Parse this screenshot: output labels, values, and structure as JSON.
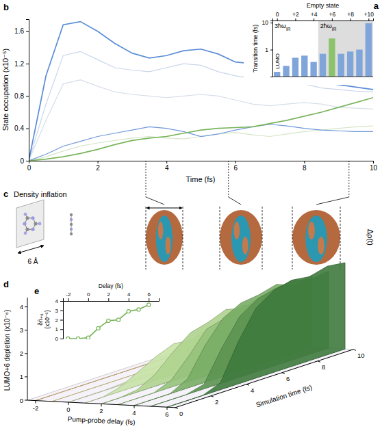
{
  "chart_data": [
    {
      "panel": "a",
      "type": "bar",
      "log": "y",
      "xlabel": "Empty state",
      "ylabel": "Transition time (fs)",
      "x": [
        0,
        1,
        2,
        3,
        4,
        5,
        6,
        7,
        8,
        9,
        10
      ],
      "values": [
        0.15,
        0.25,
        0.5,
        0.6,
        0.35,
        0.7,
        2.6,
        0.7,
        0.85,
        1.0,
        9.5
      ],
      "colors": [
        "#7fa5da",
        "#7fa5da",
        "#7fa5da",
        "#7fa5da",
        "#7fa5da",
        "#7fa5da",
        "#8cc26c",
        "#7fa5da",
        "#7fa5da",
        "#7fa5da",
        "#7fa5da"
      ],
      "xlim": [
        -0.5,
        10.5
      ],
      "xticks": [
        0,
        {
          "value": 2,
          "label": "+2"
        },
        {
          "value": 4,
          "label": "+4"
        },
        {
          "value": 6,
          "label": "+6"
        },
        {
          "value": 8,
          "label": "+8"
        },
        {
          "value": 10,
          "label": "+10"
        }
      ],
      "ylim": [
        0.1,
        12
      ],
      "yticks": [
        1,
        10
      ],
      "annotations": [
        {
          "text": "LUMO",
          "x": 0
        }
      ],
      "regions": [
        {
          "label": "3ħω",
          "label_sub": "IR",
          "from": -0.5,
          "to": 4.5,
          "shaded": false
        },
        {
          "label": "2ħω",
          "label_sub": "IR",
          "from": 4.5,
          "to": 10.5,
          "shaded": true
        }
      ]
    },
    {
      "panel": "b",
      "type": "line",
      "xlabel": "Time (fs)",
      "ylabel": "State occupation (x10⁻⁵)",
      "x": [
        0,
        0.5,
        1,
        1.5,
        2,
        2.5,
        3,
        3.5,
        4,
        4.5,
        5,
        5.5,
        6,
        6.5,
        7,
        7.5,
        8,
        8.5,
        9,
        9.5,
        10
      ],
      "series": [
        {
          "color": "#c9d6ea",
          "values": [
            0,
            0.7,
            1.3,
            1.35,
            1.25,
            1.15,
            1.12,
            1.1,
            1.15,
            1.2,
            1.18,
            1.1,
            1.05,
            1.02,
            1.0,
            0.98,
            0.95,
            0.9,
            0.88,
            0.86,
            0.85
          ]
        },
        {
          "color": "#d6dee9",
          "values": [
            0,
            0.5,
            0.95,
            1.0,
            0.92,
            0.85,
            0.82,
            0.8,
            0.78,
            0.8,
            0.82,
            0.8,
            0.75,
            0.7,
            0.68,
            0.7,
            0.72,
            0.7,
            0.66,
            0.65,
            0.64
          ]
        },
        {
          "color": "#d5e6c8",
          "values": [
            0,
            0.05,
            0.12,
            0.18,
            0.22,
            0.25,
            0.28,
            0.3,
            0.28,
            0.27,
            0.3,
            0.33,
            0.35,
            0.32,
            0.3,
            0.33,
            0.36,
            0.38,
            0.4,
            0.42,
            0.43
          ]
        },
        {
          "color": "#6f98d8",
          "values": [
            0,
            0.08,
            0.18,
            0.24,
            0.3,
            0.34,
            0.38,
            0.42,
            0.4,
            0.36,
            0.3,
            0.33,
            0.38,
            0.42,
            0.45,
            0.43,
            0.4,
            0.38,
            0.37,
            0.36,
            0.36
          ]
        },
        {
          "color": "#5b8dd6",
          "values": [
            0,
            1.05,
            1.68,
            1.72,
            1.6,
            1.45,
            1.33,
            1.27,
            1.3,
            1.36,
            1.38,
            1.32,
            1.22,
            1.2,
            1.17,
            1.08,
            1.01,
            0.97,
            0.94,
            0.91,
            0.88
          ]
        },
        {
          "color": "#7ab55c",
          "values": [
            0,
            0.02,
            0.05,
            0.09,
            0.14,
            0.2,
            0.25,
            0.28,
            0.3,
            0.34,
            0.38,
            0.4,
            0.41,
            0.42,
            0.46,
            0.5,
            0.55,
            0.6,
            0.66,
            0.72,
            0.78
          ]
        }
      ],
      "xlim": [
        0,
        10
      ],
      "xticks": [
        0,
        2,
        4,
        6,
        8,
        10
      ],
      "ylim": [
        0,
        1.75
      ],
      "yticks": [
        0,
        0.4,
        0.8,
        1.2,
        1.6
      ],
      "snapshot_times": [
        3.4,
        5.8,
        9.3
      ]
    },
    {
      "panel": "c",
      "type": "diagram",
      "title": "Density inflation",
      "scale_label": "6 Å",
      "ylabel": "Δρ(t)"
    },
    {
      "panel": "d",
      "type": "waterfall",
      "xlabel": "Pump-probe delay (fs)",
      "ylabel": "LUMO+6 depletion (x10⁻⁶)",
      "zlabel": "Simulation time (fs)",
      "t": [
        0,
        1,
        2,
        3,
        4,
        5,
        6,
        7,
        8,
        9,
        10
      ],
      "series": [
        {
          "delay": -2,
          "color": "#f3c98b",
          "values": [
            0,
            0,
            0,
            0,
            0,
            0,
            0,
            0,
            0,
            0,
            0
          ]
        },
        {
          "delay": -1,
          "color": "#ecdc93",
          "values": [
            0,
            0,
            0,
            0,
            0,
            0,
            0,
            0,
            0,
            0,
            0
          ]
        },
        {
          "delay": 0,
          "color": "#dfeec0",
          "values": [
            0,
            0,
            0,
            0.05,
            0.1,
            0.1,
            0.15,
            0.1,
            0.15,
            0.1,
            0.1
          ]
        },
        {
          "delay": 1,
          "color": "#c8e2a6",
          "values": [
            0,
            0,
            0.2,
            0.6,
            1.0,
            1.3,
            1.2,
            1.5,
            1.4,
            1.3,
            1.4
          ]
        },
        {
          "delay": 2,
          "color": "#afd38f",
          "values": [
            0,
            0,
            0.1,
            0.5,
            1.2,
            1.8,
            2.0,
            2.3,
            2.1,
            2.4,
            2.2
          ]
        },
        {
          "delay": 3,
          "color": "#95c27b",
          "values": [
            0,
            0,
            0,
            0.3,
            1.1,
            2.0,
            2.2,
            2.5,
            2.3,
            2.6,
            2.4
          ]
        },
        {
          "delay": 4,
          "color": "#79ad66",
          "values": [
            0,
            0,
            0,
            0.4,
            1.6,
            2.5,
            2.9,
            3.0,
            3.2,
            2.9,
            3.1
          ]
        },
        {
          "delay": 5,
          "color": "#5c9452",
          "values": [
            0,
            0,
            0,
            0.2,
            1.5,
            2.6,
            3.1,
            3.3,
            3.4,
            3.2,
            3.3
          ]
        },
        {
          "delay": 6,
          "color": "#3f7a3e",
          "values": [
            0,
            0,
            0,
            0.3,
            1.8,
            3.0,
            3.5,
            3.7,
            3.6,
            3.8,
            3.7
          ]
        }
      ],
      "xlim": [
        -2.5,
        6.5
      ],
      "xticks": [
        -2,
        0,
        2,
        4,
        6
      ],
      "ylim": [
        0,
        4.4
      ],
      "yticks": [
        0,
        1,
        2,
        3,
        4
      ],
      "zlim": [
        0,
        10
      ],
      "zticks": [
        0,
        2,
        4,
        6,
        8,
        10
      ]
    },
    {
      "panel": "e",
      "type": "line",
      "marker": "circle",
      "color": "#7ab55c",
      "xlabel": "Delay (fs)",
      "ylabel": "δn̄₊₆ (x10⁻⁶)",
      "x": [
        -2,
        -1,
        0,
        1,
        2,
        3,
        4,
        5,
        6
      ],
      "values": [
        0,
        0,
        0.1,
        1.1,
        1.9,
        2.0,
        2.9,
        3.1,
        3.6
      ],
      "xlim": [
        -2.5,
        7
      ],
      "xticks": [
        -2,
        0,
        2,
        4,
        6
      ],
      "ylim": [
        0,
        4
      ],
      "yticks": [
        0,
        1,
        2,
        3,
        4
      ]
    }
  ]
}
